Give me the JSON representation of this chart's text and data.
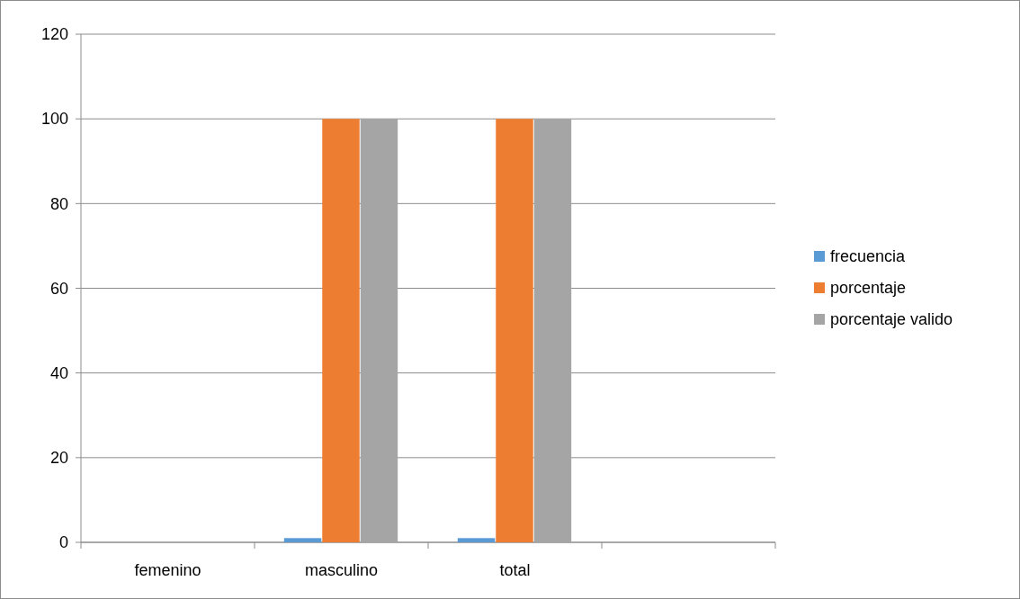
{
  "chart_data": {
    "type": "bar",
    "categories": [
      "femenino",
      "masculino",
      "total",
      null
    ],
    "series": [
      {
        "name": "frecuencia",
        "color": "#5b9bd5",
        "values": [
          0,
          1,
          1,
          null
        ]
      },
      {
        "name": "porcentaje",
        "color": "#ed7d31",
        "values": [
          0,
          100,
          100,
          null
        ]
      },
      {
        "name": "porcentaje valido",
        "color": "#a5a5a5",
        "values": [
          0,
          100,
          100,
          null
        ]
      }
    ],
    "ylim": [
      0,
      120
    ],
    "yticks": [
      0,
      20,
      40,
      60,
      80,
      100,
      120
    ],
    "grid": "y",
    "legend": "right"
  }
}
